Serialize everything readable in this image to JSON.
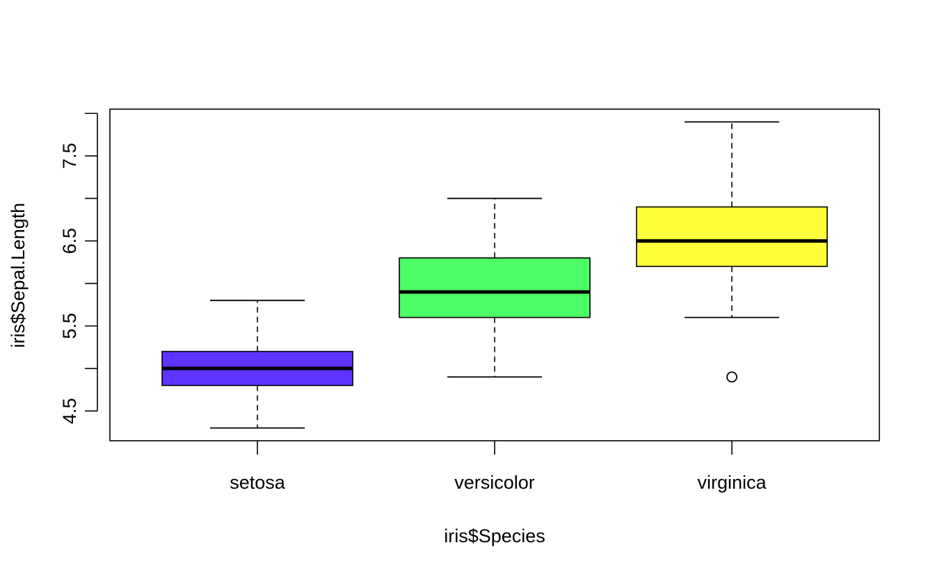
{
  "chart_data": {
    "type": "boxplot",
    "title": "",
    "xlabel": "iris$Species",
    "ylabel": "iris$Sepal.Length",
    "ylim": [
      4.15,
      8.05
    ],
    "yticks": [
      4.5,
      5.0,
      5.5,
      6.0,
      6.5,
      7.0,
      7.5,
      8.0
    ],
    "ytick_labels": [
      "4.5",
      "",
      "5.5",
      "",
      "6.5",
      "",
      "7.5",
      ""
    ],
    "grid": false,
    "legend": "none",
    "categories": [
      "setosa",
      "versicolor",
      "virginica"
    ],
    "series": [
      {
        "category": "setosa",
        "whisker_low": 4.3,
        "q1": 4.8,
        "median": 5.0,
        "q3": 5.2,
        "whisker_high": 5.8,
        "outliers": [],
        "color": "#5e33ff"
      },
      {
        "category": "versicolor",
        "whisker_low": 4.9,
        "q1": 5.6,
        "median": 5.9,
        "q3": 6.3,
        "whisker_high": 7.0,
        "outliers": [],
        "color": "#4dff66"
      },
      {
        "category": "virginica",
        "whisker_low": 5.6,
        "q1": 6.2,
        "median": 6.5,
        "q3": 6.9,
        "whisker_high": 7.9,
        "outliers": [
          4.9
        ],
        "color": "#ffff3b"
      }
    ]
  }
}
